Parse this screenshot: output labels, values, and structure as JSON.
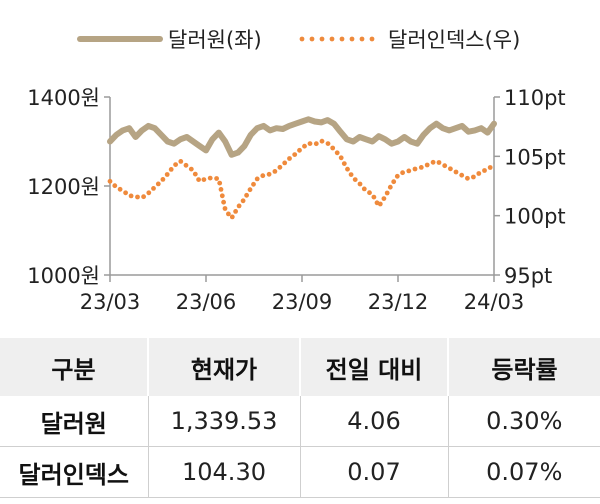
{
  "legend": {
    "series1": "달러원(좌)",
    "series2": "달러인덱스(우)"
  },
  "colors": {
    "dollar_won": "#b6a484",
    "dollar_index": "#ef8a3c",
    "axis": "#9a9a9a"
  },
  "chart_data": {
    "type": "line",
    "x_tick_labels": [
      "23/03",
      "23/06",
      "23/09",
      "23/12",
      "24/03"
    ],
    "y_left": {
      "ticks": [
        1000,
        1200,
        1400
      ],
      "tick_labels": [
        "1000원",
        "1200원",
        "1400원"
      ],
      "range": [
        1000,
        1400
      ]
    },
    "y_right": {
      "ticks": [
        95,
        100,
        105,
        110
      ],
      "tick_labels": [
        "95pt",
        "100pt",
        "105pt",
        "110pt"
      ],
      "range": [
        95,
        110
      ]
    },
    "x_range": [
      0,
      12
    ],
    "series": [
      {
        "name": "달러원(좌)",
        "axis": "left",
        "style": "solid",
        "x": [
          0,
          0.2,
          0.4,
          0.6,
          0.8,
          1,
          1.2,
          1.4,
          1.6,
          1.8,
          2,
          2.2,
          2.4,
          2.6,
          2.8,
          3,
          3.2,
          3.4,
          3.6,
          3.8,
          4,
          4.2,
          4.4,
          4.6,
          4.8,
          5,
          5.2,
          5.4,
          5.6,
          5.8,
          6,
          6.2,
          6.4,
          6.6,
          6.8,
          7,
          7.2,
          7.4,
          7.6,
          7.8,
          8,
          8.2,
          8.4,
          8.6,
          8.8,
          9,
          9.2,
          9.4,
          9.6,
          9.8,
          10,
          10.2,
          10.4,
          10.6,
          10.8,
          11,
          11.2,
          11.4,
          11.6,
          11.8,
          12
        ],
        "y": [
          1300,
          1315,
          1325,
          1330,
          1310,
          1325,
          1335,
          1330,
          1315,
          1300,
          1295,
          1305,
          1310,
          1300,
          1290,
          1280,
          1305,
          1320,
          1300,
          1270,
          1275,
          1290,
          1315,
          1330,
          1335,
          1325,
          1330,
          1328,
          1335,
          1340,
          1345,
          1350,
          1345,
          1343,
          1348,
          1340,
          1322,
          1305,
          1300,
          1310,
          1305,
          1300,
          1312,
          1305,
          1295,
          1300,
          1310,
          1300,
          1295,
          1315,
          1330,
          1340,
          1330,
          1325,
          1330,
          1335,
          1322,
          1325,
          1330,
          1320,
          1340
        ]
      },
      {
        "name": "달러인덱스(우)",
        "axis": "right",
        "style": "dotted",
        "x": [
          0,
          0.2,
          0.4,
          0.6,
          0.8,
          1,
          1.2,
          1.4,
          1.6,
          1.8,
          2,
          2.2,
          2.4,
          2.6,
          2.8,
          3,
          3.2,
          3.4,
          3.6,
          3.8,
          4,
          4.2,
          4.4,
          4.6,
          4.8,
          5,
          5.2,
          5.4,
          5.6,
          5.8,
          6,
          6.2,
          6.4,
          6.6,
          6.8,
          7,
          7.2,
          7.4,
          7.6,
          7.8,
          8,
          8.2,
          8.4,
          8.6,
          8.8,
          9,
          9.2,
          9.4,
          9.6,
          9.8,
          10,
          10.2,
          10.4,
          10.6,
          10.8,
          11,
          11.2,
          11.4,
          11.6,
          11.8,
          12
        ],
        "y": [
          102.9,
          102.4,
          102.1,
          101.7,
          101.6,
          101.5,
          101.9,
          102.4,
          102.9,
          103.5,
          104.2,
          104.6,
          104.2,
          103.8,
          102.9,
          103.1,
          103.2,
          103.1,
          100.5,
          99.8,
          100.7,
          101.4,
          102.3,
          103.1,
          103.4,
          103.5,
          103.8,
          104.3,
          104.8,
          105.2,
          105.7,
          106.1,
          106.0,
          106.3,
          106.1,
          105.6,
          105.0,
          104.0,
          103.2,
          102.7,
          102.1,
          101.8,
          100.8,
          101.6,
          102.6,
          103.4,
          103.7,
          103.8,
          104.0,
          104.1,
          104.4,
          104.6,
          104.3,
          104.0,
          103.7,
          103.4,
          103.1,
          103.3,
          103.7,
          103.9,
          104.3
        ]
      }
    ]
  },
  "table": {
    "headers": [
      "구분",
      "현재가",
      "전일 대비",
      "등락률"
    ],
    "rows": [
      [
        "달러원",
        "1,339.53",
        "4.06",
        "0.30%"
      ],
      [
        "달러인덱스",
        "104.30",
        "0.07",
        "0.07%"
      ]
    ]
  }
}
